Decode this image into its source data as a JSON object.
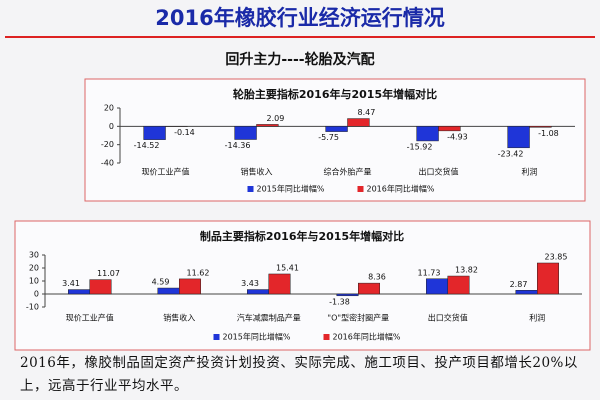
{
  "header": {
    "title": "2016年橡胶行业经济运行情况",
    "subtitle": "回升主力----轮胎及汽配"
  },
  "chart_data": [
    {
      "type": "bar",
      "title": "轮胎主要指标2016年与2015年增幅对比",
      "categories": [
        "现价工业产值",
        "销售收入",
        "综合外胎产量",
        "出口交货值",
        "利润"
      ],
      "series": [
        {
          "name": "2015年同比增幅%",
          "color": "#1f35d8",
          "values": [
            -14.52,
            -14.36,
            -5.75,
            -15.92,
            -23.42
          ]
        },
        {
          "name": "2016年同比增幅%",
          "color": "#e3262a",
          "values": [
            -0.14,
            2.09,
            8.47,
            -4.93,
            -1.08
          ]
        }
      ],
      "ylim": [
        -40,
        20
      ],
      "yticks": [
        -40,
        -20,
        0,
        20
      ]
    },
    {
      "type": "bar",
      "title": "制品主要指标2016年与2015年增幅对比",
      "categories": [
        "现价工业产值",
        "销售收入",
        "汽车减震制品产量",
        "\"O\"型密封圈产量",
        "出口交货值",
        "利润"
      ],
      "series": [
        {
          "name": "2015年同比增幅%",
          "color": "#1f35d8",
          "values": [
            3.41,
            4.59,
            3.43,
            -1.38,
            11.73,
            2.87
          ]
        },
        {
          "name": "2016年同比增幅%",
          "color": "#e3262a",
          "values": [
            11.07,
            11.62,
            15.41,
            8.36,
            13.82,
            23.85
          ]
        }
      ],
      "ylim": [
        -10,
        30
      ],
      "yticks": [
        -10,
        0,
        10,
        20,
        30
      ]
    }
  ],
  "footer": "2016年，橡胶制品固定资产投资计划投资、实际完成、施工项目、投产项目都增长20%以上，远高于行业平均水平。"
}
